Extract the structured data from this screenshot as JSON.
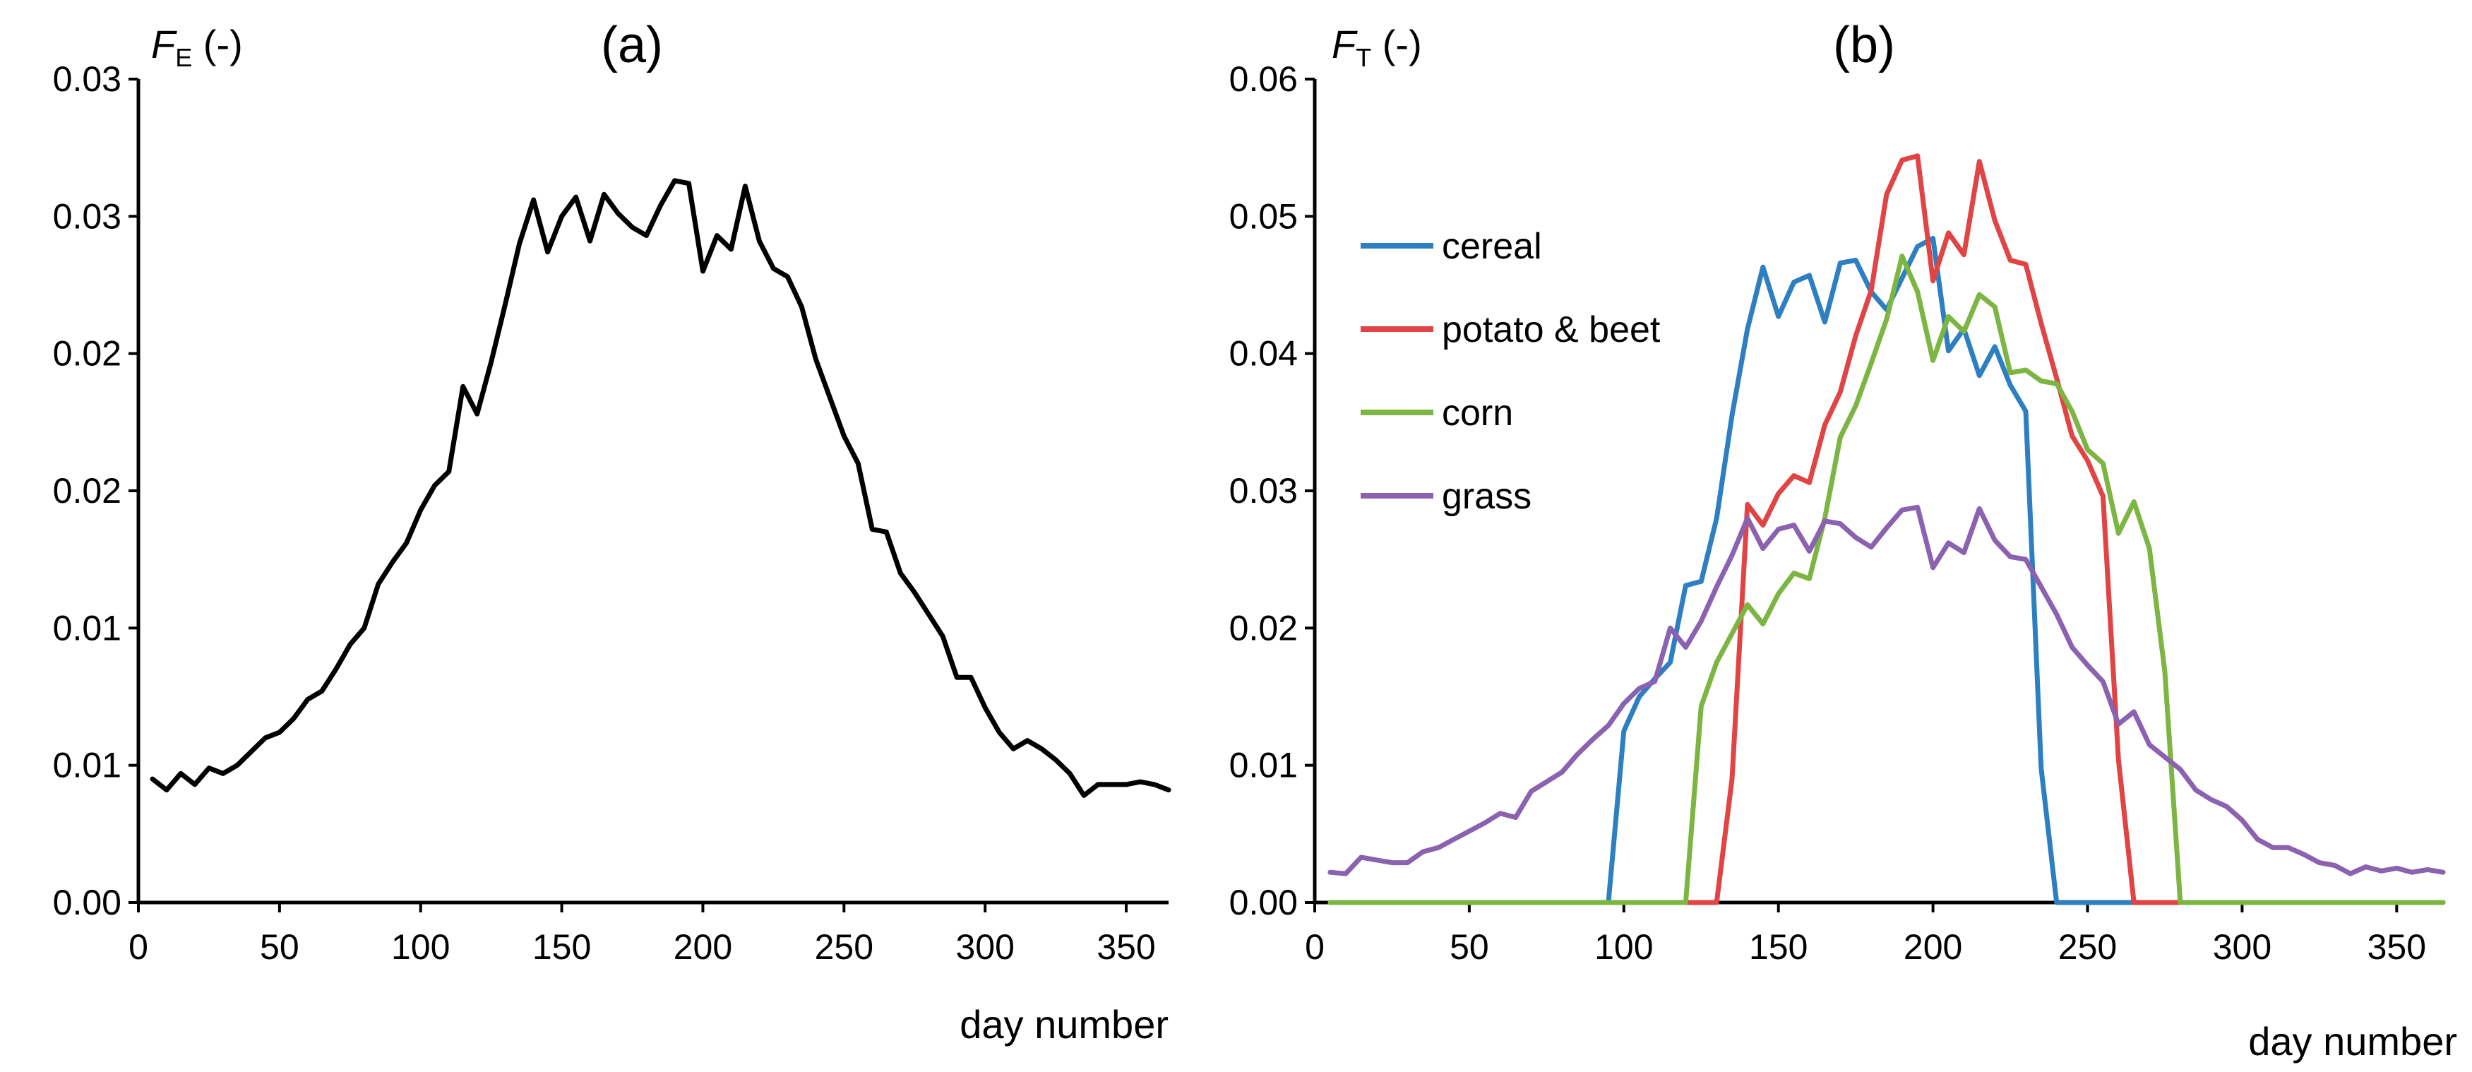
{
  "chart_data": [
    {
      "type": "line",
      "panel_label": "(a)",
      "ylabel": {
        "symbol": "F",
        "subscript": "E",
        "unit": "(-)"
      },
      "xlabel": "day number",
      "xlim": [
        0,
        365
      ],
      "ylim": [
        0,
        0.03
      ],
      "x_ticks": [
        0,
        50,
        100,
        150,
        200,
        250,
        300,
        350
      ],
      "y_ticks": [
        0,
        0.005,
        0.01,
        0.015,
        0.02,
        0.025,
        0.03
      ],
      "y_tick_labels": [
        "0.00",
        "0.01",
        "0.01",
        "0.02",
        "0.02",
        "0.03",
        "0.03"
      ],
      "grid": false,
      "series": [
        {
          "color": "#000000",
          "x": [
            5,
            10,
            15,
            20,
            25,
            30,
            35,
            40,
            45,
            50,
            55,
            60,
            65,
            70,
            75,
            80,
            85,
            90,
            95,
            100,
            105,
            110,
            115,
            120,
            125,
            130,
            135,
            140,
            145,
            150,
            155,
            160,
            165,
            170,
            175,
            180,
            185,
            190,
            195,
            200,
            205,
            210,
            215,
            220,
            225,
            230,
            235,
            240,
            245,
            250,
            255,
            260,
            265,
            270,
            275,
            280,
            285,
            290,
            295,
            300,
            305,
            310,
            315,
            320,
            325,
            330,
            335,
            340,
            345,
            350,
            355,
            360,
            365
          ],
          "y": [
            0.0045,
            0.0041,
            0.0047,
            0.0043,
            0.0049,
            0.0047,
            0.005,
            0.0055,
            0.006,
            0.0062,
            0.0067,
            0.0074,
            0.0077,
            0.0085,
            0.0094,
            0.01,
            0.0116,
            0.0124,
            0.0131,
            0.0143,
            0.0152,
            0.0157,
            0.0188,
            0.0178,
            0.0197,
            0.0218,
            0.024,
            0.0256,
            0.0237,
            0.025,
            0.0257,
            0.0241,
            0.0258,
            0.0251,
            0.0246,
            0.0243,
            0.0254,
            0.0263,
            0.0262,
            0.023,
            0.0243,
            0.0238,
            0.0261,
            0.0241,
            0.0231,
            0.0228,
            0.0217,
            0.0198,
            0.0184,
            0.017,
            0.016,
            0.0136,
            0.0135,
            0.012,
            0.0113,
            0.0105,
            0.0097,
            0.0082,
            0.0082,
            0.0071,
            0.0062,
            0.0056,
            0.0059,
            0.0056,
            0.0052,
            0.0047,
            0.0039,
            0.0043,
            0.0043,
            0.0043,
            0.0044,
            0.0043,
            0.0041
          ]
        }
      ]
    },
    {
      "type": "line",
      "panel_label": "(b)",
      "ylabel": {
        "symbol": "F",
        "subscript": "T",
        "unit": "(-)"
      },
      "xlabel": "day number",
      "xlim": [
        0,
        365
      ],
      "ylim": [
        0,
        0.06
      ],
      "x_ticks": [
        0,
        50,
        100,
        150,
        200,
        250,
        300,
        350
      ],
      "y_ticks": [
        0,
        0.01,
        0.02,
        0.03,
        0.04,
        0.05,
        0.06
      ],
      "y_tick_labels": [
        "0.00",
        "0.01",
        "0.02",
        "0.03",
        "0.04",
        "0.05",
        "0.06"
      ],
      "grid": false,
      "legend_position": "top-left",
      "series": [
        {
          "name": "cereal",
          "color": "#2E7FC2",
          "x": [
            5,
            95,
            100,
            105,
            110,
            115,
            120,
            125,
            130,
            135,
            140,
            145,
            150,
            155,
            160,
            165,
            170,
            175,
            180,
            185,
            190,
            195,
            200,
            205,
            210,
            215,
            220,
            225,
            230,
            235,
            240,
            365
          ],
          "y": [
            0,
            0,
            0.0125,
            0.015,
            0.0163,
            0.0175,
            0.0231,
            0.0234,
            0.028,
            0.0355,
            0.0418,
            0.0463,
            0.0427,
            0.0452,
            0.0457,
            0.0423,
            0.0466,
            0.0468,
            0.0445,
            0.0432,
            0.0455,
            0.0478,
            0.0484,
            0.0402,
            0.0418,
            0.0384,
            0.0405,
            0.0377,
            0.0358,
            0.0098,
            0,
            0
          ]
        },
        {
          "name": "potato & beet",
          "color": "#E04444",
          "x": [
            5,
            130,
            135,
            140,
            145,
            150,
            155,
            160,
            165,
            170,
            175,
            180,
            185,
            190,
            195,
            200,
            205,
            210,
            215,
            220,
            225,
            230,
            235,
            240,
            245,
            250,
            255,
            260,
            265,
            365
          ],
          "y": [
            0,
            0,
            0.009,
            0.029,
            0.0275,
            0.0298,
            0.0311,
            0.0306,
            0.0348,
            0.0372,
            0.0413,
            0.0446,
            0.0516,
            0.0541,
            0.0544,
            0.0453,
            0.0488,
            0.0472,
            0.054,
            0.0497,
            0.0468,
            0.0465,
            0.0422,
            0.0382,
            0.034,
            0.0322,
            0.0296,
            0.0104,
            0,
            0
          ]
        },
        {
          "name": "corn",
          "color": "#7DB543",
          "x": [
            5,
            120,
            125,
            130,
            135,
            140,
            145,
            150,
            155,
            160,
            165,
            170,
            175,
            180,
            185,
            190,
            195,
            200,
            205,
            210,
            215,
            220,
            225,
            230,
            235,
            240,
            245,
            250,
            255,
            260,
            265,
            270,
            275,
            280,
            365
          ],
          "y": [
            0,
            0,
            0.0143,
            0.0175,
            0.0196,
            0.0217,
            0.0203,
            0.0225,
            0.024,
            0.0236,
            0.028,
            0.0339,
            0.0362,
            0.0393,
            0.0425,
            0.0471,
            0.0445,
            0.0395,
            0.0427,
            0.0416,
            0.0443,
            0.0434,
            0.0386,
            0.0388,
            0.038,
            0.0378,
            0.0358,
            0.033,
            0.032,
            0.0269,
            0.0292,
            0.0258,
            0.0168,
            0,
            0
          ]
        },
        {
          "name": "grass",
          "color": "#8A62B0",
          "x": [
            5,
            10,
            15,
            20,
            25,
            30,
            35,
            40,
            45,
            50,
            55,
            60,
            65,
            70,
            75,
            80,
            85,
            90,
            95,
            100,
            105,
            110,
            115,
            120,
            125,
            130,
            135,
            140,
            145,
            150,
            155,
            160,
            165,
            170,
            175,
            180,
            185,
            190,
            195,
            200,
            205,
            210,
            215,
            220,
            225,
            230,
            235,
            240,
            245,
            250,
            255,
            260,
            265,
            270,
            275,
            280,
            285,
            290,
            295,
            300,
            305,
            310,
            315,
            320,
            325,
            330,
            335,
            340,
            345,
            350,
            355,
            360,
            365
          ],
          "y": [
            0.0022,
            0.0021,
            0.0033,
            0.0031,
            0.0029,
            0.0029,
            0.0037,
            0.004,
            0.0046,
            0.0052,
            0.0058,
            0.0065,
            0.0062,
            0.0081,
            0.0088,
            0.0095,
            0.0108,
            0.0119,
            0.0129,
            0.0145,
            0.0156,
            0.0161,
            0.02,
            0.0186,
            0.0205,
            0.023,
            0.0253,
            0.028,
            0.0258,
            0.0272,
            0.0275,
            0.0256,
            0.0278,
            0.0276,
            0.0266,
            0.0259,
            0.0273,
            0.0286,
            0.0288,
            0.0244,
            0.0262,
            0.0255,
            0.0287,
            0.0264,
            0.0252,
            0.025,
            0.023,
            0.021,
            0.0186,
            0.0173,
            0.0161,
            0.013,
            0.0139,
            0.0115,
            0.0106,
            0.0097,
            0.0082,
            0.0075,
            0.007,
            0.006,
            0.0046,
            0.004,
            0.004,
            0.0035,
            0.0029,
            0.0027,
            0.0021,
            0.0026,
            0.0023,
            0.0025,
            0.0022,
            0.0024,
            0.0022
          ]
        }
      ]
    }
  ]
}
